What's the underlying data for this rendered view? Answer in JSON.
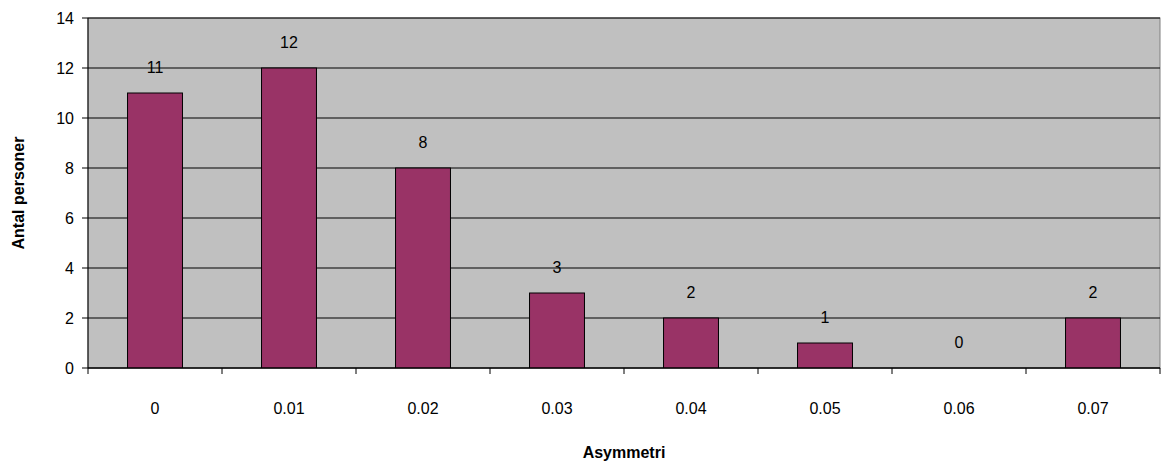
{
  "chart_data": {
    "type": "bar",
    "x_label": "Asymmetri",
    "y_label": "Antal personer",
    "categories": [
      "0",
      "0.01",
      "0.02",
      "0.03",
      "0.04",
      "0.05",
      "0.06",
      "0.07"
    ],
    "values": [
      11,
      12,
      8,
      3,
      2,
      1,
      0,
      2
    ],
    "color": "#993366",
    "ylim": [
      0,
      14
    ],
    "yticks": [
      0,
      2,
      4,
      6,
      8,
      10,
      12,
      14
    ],
    "grid": true,
    "data_labels": true
  }
}
